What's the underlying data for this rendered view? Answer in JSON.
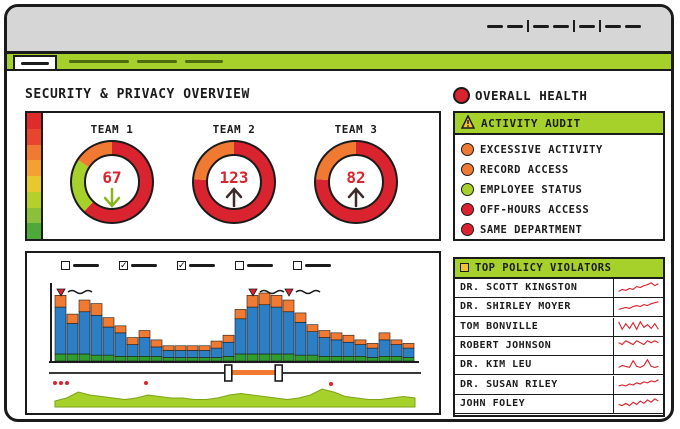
{
  "page": {
    "title": "SECURITY & PRIVACY OVERVIEW"
  },
  "overall_health": {
    "label": "OVERALL HEALTH",
    "status_color": "#d9232e"
  },
  "teams": [
    {
      "label": "TEAM 1",
      "score": "67",
      "trend": "down",
      "arrow_color": "#8bb51c"
    },
    {
      "label": "TEAM 2",
      "score": "123",
      "trend": "up",
      "arrow_color": "#3b2b2b"
    },
    {
      "label": "TEAM 3",
      "score": "82",
      "trend": "up",
      "arrow_color": "#3b2b2b"
    }
  ],
  "activity_audit": {
    "title": "ACTIVITY AUDIT",
    "icon": "warning-icon",
    "items": [
      {
        "label": "EXCESSIVE ACTIVITY",
        "color": "#f07a32"
      },
      {
        "label": "RECORD ACCESS",
        "color": "#f07a32"
      },
      {
        "label": "EMPLOYEE STATUS",
        "color": "#a6d12b"
      },
      {
        "label": "OFF-HOURS ACCESS",
        "color": "#d9232e"
      },
      {
        "label": "SAME DEPARTMENT",
        "color": "#d9232e"
      }
    ]
  },
  "top_violators": {
    "title": "TOP POLICY VIOLATORS",
    "rows": [
      {
        "name": "DR. SCOTT KINGSTON"
      },
      {
        "name": "DR. SHIRLEY MOYER"
      },
      {
        "name": "TOM BONVILLE"
      },
      {
        "name": "ROBERT JOHNSON"
      },
      {
        "name": "DR. KIM LEU"
      },
      {
        "name": "DR. SUSAN RILEY"
      },
      {
        "name": "JOHN FOLEY"
      }
    ]
  },
  "chart_data": {
    "type": "bar",
    "stacked": true,
    "legend": {
      "checked": [
        false,
        true,
        true,
        false,
        false
      ]
    },
    "series": [
      {
        "color": "#2c7fc4",
        "values": [
          40,
          26,
          36,
          34,
          24,
          20,
          10,
          16,
          8,
          6,
          6,
          6,
          6,
          8,
          12,
          30,
          40,
          42,
          40,
          36,
          28,
          20,
          16,
          14,
          12,
          10,
          8,
          14,
          10,
          8
        ]
      },
      {
        "color": "#2e9e2e",
        "values": [
          6,
          6,
          6,
          5,
          5,
          4,
          4,
          4,
          4,
          3,
          3,
          3,
          3,
          3,
          4,
          6,
          6,
          6,
          6,
          6,
          5,
          5,
          4,
          4,
          4,
          4,
          3,
          4,
          4,
          3
        ]
      },
      {
        "color": "#f07a32",
        "values": [
          10,
          8,
          10,
          10,
          8,
          6,
          6,
          6,
          6,
          4,
          4,
          4,
          4,
          6,
          6,
          8,
          10,
          10,
          10,
          10,
          8,
          6,
          6,
          6,
          6,
          4,
          4,
          6,
          4,
          4
        ]
      }
    ],
    "markers": [
      0,
      16,
      19
    ],
    "range": {
      "start": 0.48,
      "end": 0.62
    },
    "overview": [
      4,
      6,
      10,
      8,
      7,
      6,
      5,
      6,
      8,
      7,
      6,
      6,
      5,
      5,
      6,
      8,
      9,
      8,
      7,
      6,
      5,
      6,
      8,
      12,
      10,
      7,
      6,
      5,
      5,
      6,
      7,
      6
    ]
  },
  "violator_sparks": [
    [
      3,
      5,
      4,
      6,
      5,
      8,
      7,
      9,
      10,
      12,
      9,
      11
    ],
    [
      4,
      5,
      6,
      5,
      7,
      8,
      7,
      9,
      8,
      10,
      11,
      12
    ],
    [
      12,
      4,
      10,
      5,
      11,
      4,
      12,
      6,
      9,
      5,
      10,
      4
    ],
    [
      5,
      4,
      6,
      5,
      4,
      6,
      5,
      4,
      6,
      5,
      6,
      5
    ],
    [
      4,
      6,
      5,
      4,
      11,
      5,
      4,
      6,
      12,
      5,
      4,
      5
    ],
    [
      5,
      6,
      5,
      7,
      6,
      8,
      7,
      9,
      8,
      10,
      9,
      11
    ],
    [
      5,
      4,
      6,
      4,
      7,
      5,
      8,
      6,
      9,
      7,
      10,
      8
    ]
  ]
}
